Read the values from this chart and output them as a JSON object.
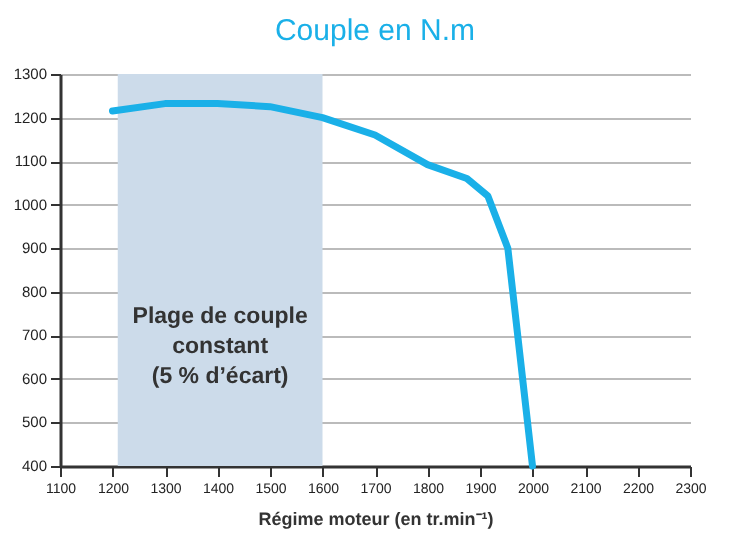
{
  "chart_data": {
    "type": "line",
    "title": "Couple en N.m",
    "xlabel": "Régime moteur (en tr.min⁻¹)",
    "x": [
      1200,
      1300,
      1400,
      1500,
      1600,
      1700,
      1800,
      1875,
      1915,
      1953,
      2000
    ],
    "series": [
      {
        "color": "#1ab0e8",
        "values": [
          1215,
          1232,
          1232,
          1225,
          1200,
          1160,
          1092,
          1060,
          1020,
          900,
          400
        ]
      }
    ],
    "xlim": [
      1100,
      2300
    ],
    "xticks": [
      1100,
      1200,
      1300,
      1400,
      1500,
      1600,
      1700,
      1800,
      1900,
      2000,
      2100,
      2200,
      2300
    ],
    "ylim": [
      400,
      1300
    ],
    "yticks": [
      400,
      500,
      600,
      700,
      800,
      900,
      1000,
      1100,
      1200,
      1300
    ],
    "grid": "y",
    "marker": "none",
    "line_style": "solid",
    "bands": [
      {
        "axis": "x",
        "from": 1210,
        "to": 1600,
        "label": "Plage de couple\nconstant\n(5 % d’écart)",
        "color": "#ccdbea"
      }
    ]
  }
}
